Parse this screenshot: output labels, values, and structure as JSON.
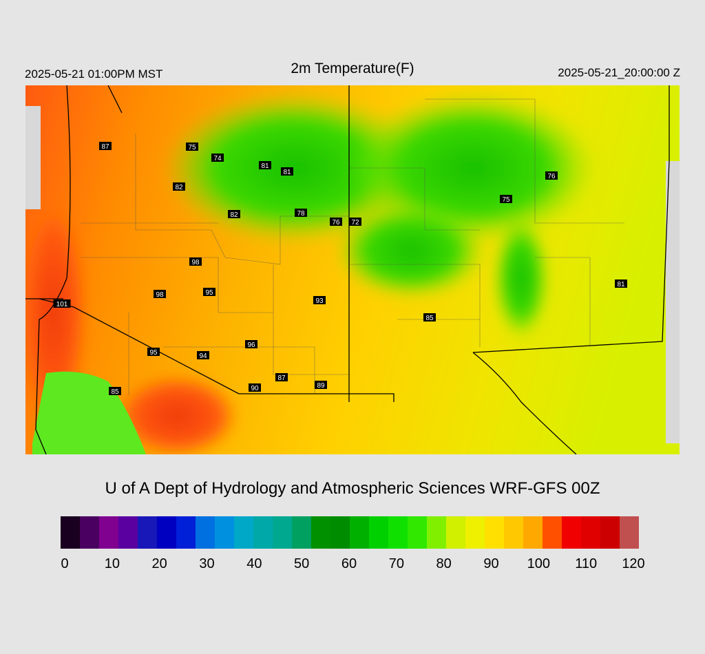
{
  "header": {
    "valid_local": "2025-05-21 01:00PM MST",
    "title": "2m Temperature(F)",
    "valid_utc": "2025-05-21_20:00:00 Z"
  },
  "credit": "U of A Dept of Hydrology and Atmospheric Sciences WRF-GFS 00Z",
  "colorbar": {
    "ticks": [
      "0",
      "10",
      "20",
      "30",
      "40",
      "50",
      "60",
      "70",
      "80",
      "90",
      "100",
      "110",
      "120"
    ],
    "min": 0,
    "max": 120
  },
  "station_labels": [
    "87",
    "75",
    "74",
    "81",
    "81",
    "82",
    "82",
    "78",
    "76",
    "72",
    "76",
    "75",
    "98",
    "98",
    "95",
    "93",
    "101",
    "85",
    "81",
    "96",
    "95",
    "94",
    "87",
    "90",
    "89",
    "85"
  ],
  "colors": {
    "background": "#e5e5e5",
    "cool": "#22d000",
    "mid": "#e6f000",
    "warm": "#f5b800",
    "hot": "#ff6a00",
    "hottest": "#f03a10"
  }
}
